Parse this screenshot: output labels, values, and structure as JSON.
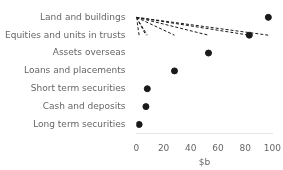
{
  "chart_data": {
    "type": "lollipop",
    "orientation": "horizontal",
    "categories": [
      "Land and buildings",
      "Equities and units in trusts",
      "Assets overseas",
      "Loans and placements",
      "Short term securities",
      "Cash and deposits",
      "Long term securities"
    ],
    "values": [
      97,
      83,
      53,
      28,
      8,
      7,
      2
    ],
    "xlabel": "$b",
    "xlim": [
      0,
      100
    ],
    "xticks": [
      0,
      20,
      40,
      60,
      80,
      100
    ],
    "color": "#1a1a1a",
    "line_style": "dashed",
    "marker": "circle",
    "grid": false
  }
}
